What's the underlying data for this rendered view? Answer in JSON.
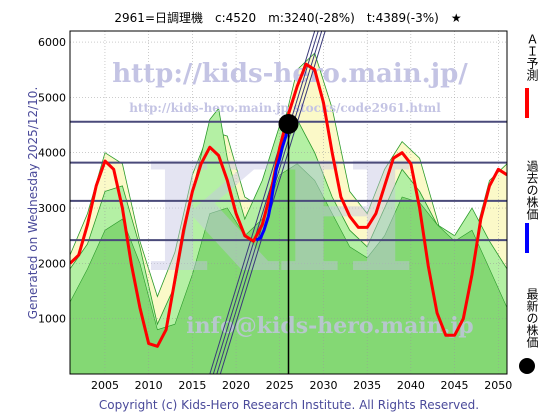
{
  "header": {
    "title": "2961=日調理機　c:4520　m:3240(-28%)　t:4389(-3%)　★"
  },
  "footer": {
    "copyright": "Copyright (c) Kids-Hero Research Institute. All Rights Reserved.",
    "generated": "Generated on Wednesday 2025/12/10."
  },
  "watermark": {
    "url_main": "http://kids-hero.main.jp/",
    "url_code": "http://kids-hero.main.jp/stocks/code2961.html",
    "url_bottom": "info@kids-hero.main.jp",
    "logo": "KH"
  },
  "legend": [
    {
      "name": "ＡＩ予測",
      "color": "#ff0000",
      "marker": "line"
    },
    {
      "name": "過去の株価",
      "color": "#0000ff",
      "marker": "line"
    },
    {
      "name": "最新の株価",
      "color": "#000000",
      "marker": "dot"
    }
  ],
  "colors": {
    "plot_bg": "#ffffff",
    "band_light": "#fbf9c8",
    "band_green": "#b4f0a4",
    "band_green_dark": "#84d874",
    "band_line": "#2a9a2a",
    "forecast": "#ff0000",
    "history": "#0000ff",
    "hline": "#4a4a7a",
    "trend": "#3a3a7a",
    "watermark": "#c4c4e4"
  },
  "chart_data": {
    "type": "line",
    "title": "2961=日調理機　c:4520　m:3240(-28%)　t:4389(-3%)　★",
    "xlim": [
      2001,
      2051
    ],
    "ylim": [
      0,
      6200
    ],
    "x_ticks": [
      2005,
      2010,
      2015,
      2020,
      2025,
      2030,
      2035,
      2040,
      2045,
      2050
    ],
    "y_ticks": [
      1000,
      2000,
      3000,
      4000,
      5000,
      6000
    ],
    "grid": true,
    "legend_position": "right",
    "current": {
      "x": 2026.0,
      "y": 4520
    },
    "h_lines": [
      4560,
      3820,
      3130,
      2420
    ],
    "trend_lines": [
      {
        "x1": 2017.0,
        "y1": 0,
        "x2": 2029.0,
        "y2": 6200
      },
      {
        "x1": 2017.4,
        "y1": 0,
        "x2": 2029.4,
        "y2": 6200
      },
      {
        "x1": 2017.8,
        "y1": 0,
        "x2": 2029.8,
        "y2": 6200
      },
      {
        "x1": 2018.2,
        "y1": 0,
        "x2": 2030.2,
        "y2": 6200
      }
    ],
    "series": [
      {
        "name": "ＡＩ予測",
        "x": [
          2001,
          2002,
          2003,
          2004,
          2005,
          2006,
          2007,
          2008,
          2009,
          2010,
          2011,
          2012,
          2013,
          2014,
          2015,
          2016,
          2017,
          2018,
          2019,
          2020,
          2021,
          2022,
          2023,
          2024,
          2025,
          2026,
          2027,
          2028,
          2029,
          2030,
          2031,
          2032,
          2033,
          2034,
          2035,
          2036,
          2037,
          2038,
          2039,
          2040,
          2041,
          2042,
          2043,
          2044,
          2045,
          2046,
          2047,
          2048,
          2049,
          2050,
          2051
        ],
        "y": [
          2000,
          2150,
          2700,
          3400,
          3850,
          3700,
          3000,
          2000,
          1200,
          550,
          500,
          800,
          1700,
          2600,
          3300,
          3800,
          4100,
          3950,
          3500,
          2900,
          2500,
          2400,
          2700,
          3300,
          4100,
          4700,
          5200,
          5600,
          5500,
          4900,
          4000,
          3200,
          2850,
          2650,
          2650,
          2900,
          3400,
          3900,
          4000,
          3800,
          3000,
          1950,
          1100,
          700,
          700,
          1000,
          1800,
          2800,
          3400,
          3700,
          3600
        ]
      },
      {
        "name": "過去の株価",
        "x": [
          2022.3,
          2022.8,
          2023.2,
          2023.7,
          2024.0,
          2024.3,
          2024.6,
          2025.0,
          2025.3,
          2025.7,
          2026.0
        ],
        "y": [
          2420,
          2460,
          2600,
          2850,
          3100,
          3400,
          3700,
          3900,
          4100,
          4300,
          4520
        ]
      }
    ],
    "band_light_upper": {
      "x": [
        2001,
        2003,
        2005,
        2007,
        2009,
        2011,
        2013,
        2015,
        2017,
        2019,
        2021,
        2023,
        2025,
        2027,
        2029,
        2031,
        2033,
        2035,
        2037,
        2039,
        2041,
        2043,
        2045,
        2047,
        2049,
        2051
      ],
      "y": [
        2150,
        2900,
        4000,
        3800,
        2400,
        1400,
        2200,
        3600,
        4400,
        4300,
        3200,
        3000,
        4200,
        5500,
        5800,
        4800,
        3300,
        2900,
        3700,
        4200,
        3900,
        2800,
        1600,
        2300,
        3500,
        3800
      ]
    },
    "band_green_upper": {
      "x": [
        2001,
        2003,
        2005,
        2007,
        2009,
        2011,
        2013,
        2015,
        2017,
        2018,
        2019,
        2021,
        2023,
        2025,
        2027,
        2029,
        2031,
        2033,
        2035,
        2037,
        2039,
        2041,
        2043,
        2045,
        2047,
        2049,
        2051
      ],
      "y": [
        1900,
        2350,
        3300,
        3400,
        2300,
        900,
        1600,
        3300,
        4600,
        4800,
        3900,
        2800,
        3500,
        4500,
        4600,
        4000,
        3200,
        2600,
        2300,
        3000,
        3700,
        3300,
        2700,
        2500,
        3000,
        2400,
        1900
      ]
    },
    "band_green_dark_upper": {
      "x": [
        2001,
        2003,
        2005,
        2007,
        2009,
        2011,
        2013,
        2015,
        2017,
        2019,
        2021,
        2023,
        2025,
        2027,
        2029,
        2031,
        2033,
        2035,
        2037,
        2039,
        2041,
        2043,
        2045,
        2047,
        2049,
        2051
      ],
      "y": [
        1300,
        1900,
        2600,
        2800,
        2000,
        800,
        900,
        1800,
        2900,
        3000,
        2500,
        2800,
        3600,
        3800,
        3500,
        2900,
        2300,
        2100,
        2500,
        3200,
        3100,
        2700,
        2400,
        2600,
        1900,
        1200
      ]
    }
  }
}
